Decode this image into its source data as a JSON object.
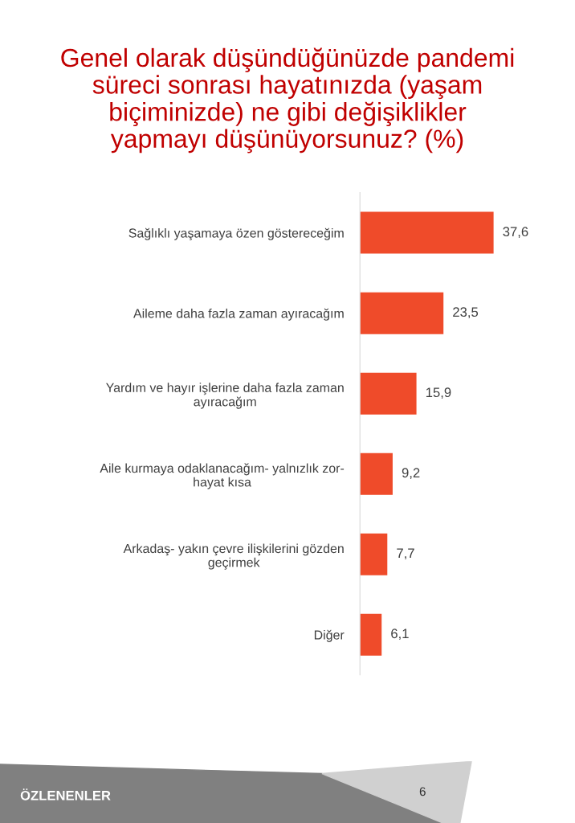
{
  "chart_data": {
    "type": "bar",
    "orientation": "horizontal",
    "title": "Genel olarak düşündüğünüzde pandemi\nsüreci sonrası hayatınızda (yaşam\nbiçiminizde) ne gibi değişiklikler\nyapmayı düşünüyorsunuz? (%)",
    "categories": [
      "Sağlıklı yaşamaya özen göstereceğim",
      "Aileme daha fazla zaman ayıracağım",
      "Yardım ve hayır işlerine daha fazla zaman\nayıracağım",
      "Aile kurmaya odaklanacağım- yalnızlık zor-\nhayat kısa",
      "Arkadaş- yakın çevre ilişkilerini gözden\ngeçirmek",
      "Diğer"
    ],
    "values": [
      37.6,
      23.5,
      15.9,
      9.2,
      7.7,
      6.1
    ],
    "value_labels": [
      "37,6",
      "23,5",
      "15,9",
      "9,2",
      "7,7",
      "6,1"
    ],
    "color": "#ef4b2a",
    "grid": false,
    "legend": false,
    "annotations": [
      "ÖZLENENLER",
      "6"
    ]
  }
}
